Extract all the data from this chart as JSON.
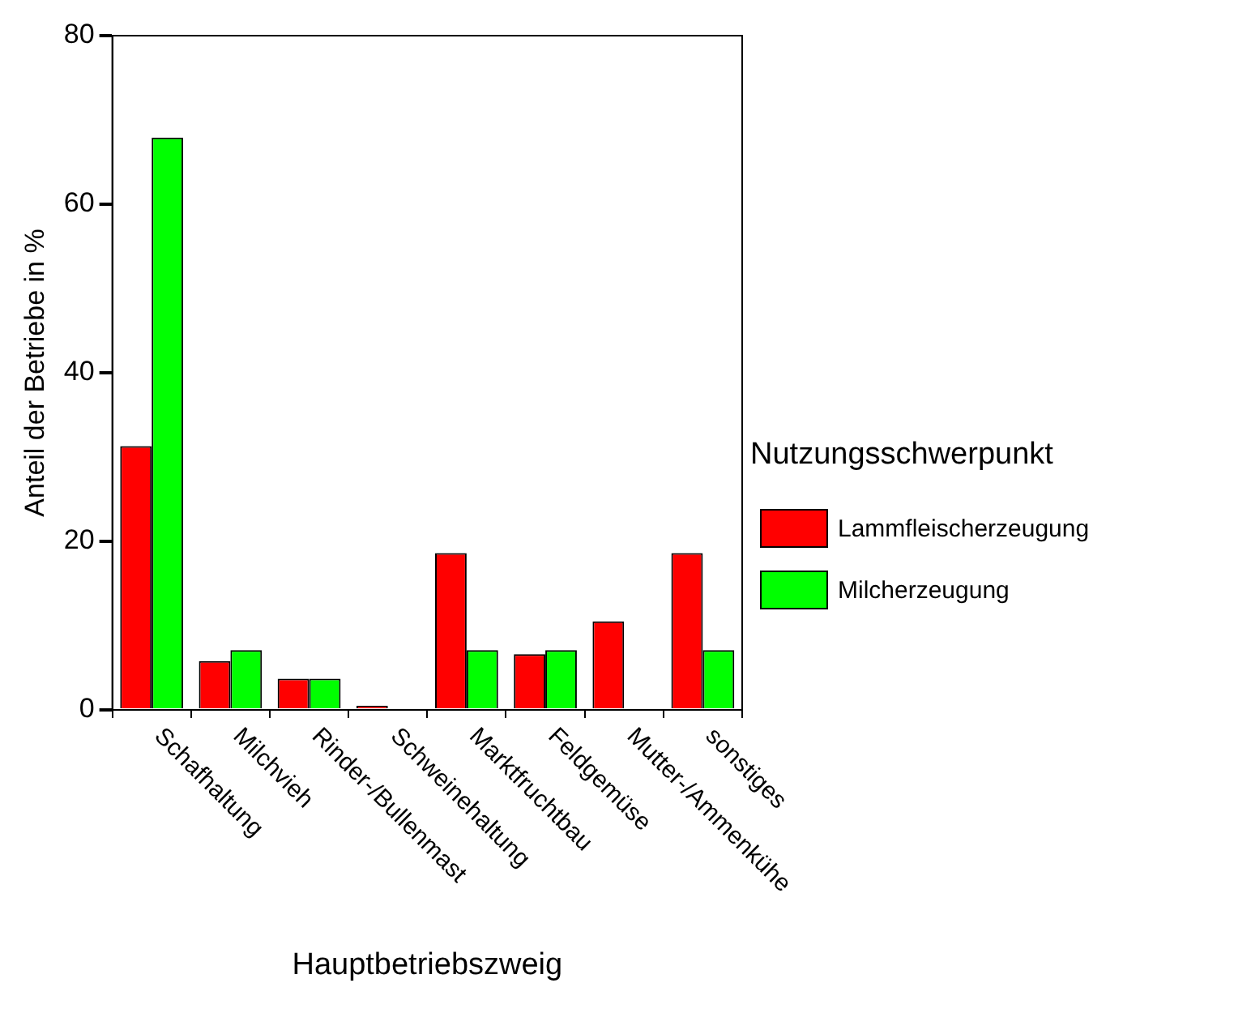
{
  "chart_data": {
    "type": "bar",
    "xlabel": "Hauptbetriebszweig",
    "ylabel": "Anteil der Betriebe in %",
    "legend_title": "Nutzungsschwerpunkt",
    "categories": [
      "Schafhaltung",
      "Milchvieh",
      "Rinder-/Bullenmast",
      "Schweinehaltung",
      "Marktfruchtbau",
      "Feldgemüse",
      "Mutter-/Ammenkühe",
      "sonstiges"
    ],
    "series": [
      {
        "name": "Lammfleischerzeugung",
        "color": "#ff0000",
        "values": [
          31.3,
          5.8,
          3.7,
          0.5,
          18.6,
          6.6,
          10.5,
          18.6
        ]
      },
      {
        "name": "Milcherzeugung",
        "color": "#00ff00",
        "values": [
          67.9,
          7.1,
          3.7,
          0,
          7.1,
          7.1,
          0,
          7.1
        ]
      }
    ],
    "ylim": [
      0,
      80
    ],
    "yticks": [
      0,
      20,
      40,
      60,
      80
    ],
    "grid": false,
    "legend": "right"
  }
}
